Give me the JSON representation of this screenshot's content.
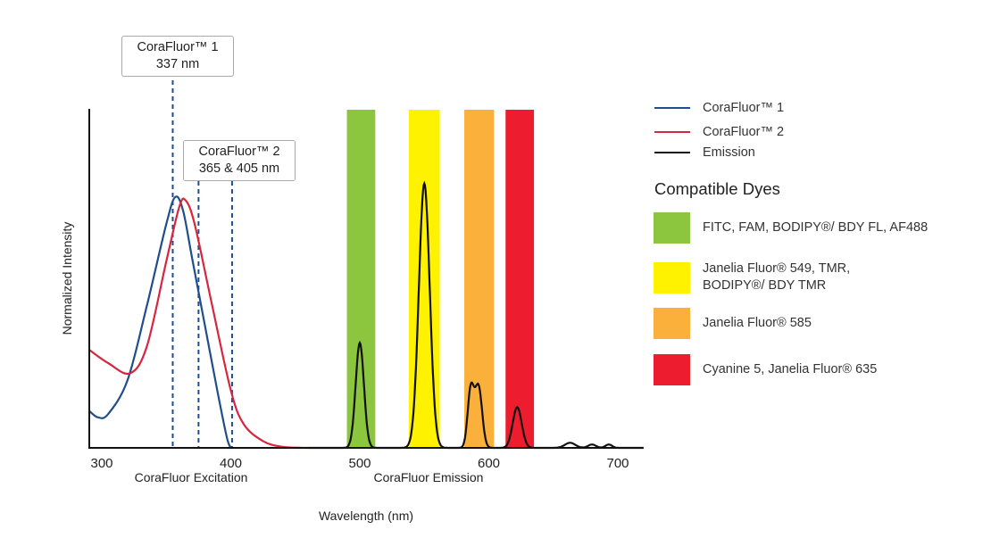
{
  "chart_data": {
    "type": "line",
    "xlabel": "Wavelength (nm)",
    "ylabel": "Normalized Intensity",
    "section_labels": [
      "CoraFluor Excitation",
      "CoraFluor Emission"
    ],
    "xticks": [
      300,
      400,
      500,
      600,
      700
    ],
    "xlim": [
      290,
      720
    ],
    "ylim": [
      0,
      1
    ],
    "callouts": [
      {
        "line1": "CoraFluor™ 1",
        "line2": "337 nm"
      },
      {
        "line1": "CoraFluor™ 2",
        "line2": "365 & 405 nm"
      }
    ],
    "dashed_lines_nm": [
      355,
      375,
      401
    ],
    "series": [
      {
        "name": "CoraFluor™ 1",
        "color": "#1f4e8c",
        "points": [
          [
            290,
            0.11
          ],
          [
            297,
            0.09
          ],
          [
            305,
            0.1
          ],
          [
            320,
            0.2
          ],
          [
            335,
            0.42
          ],
          [
            350,
            0.66
          ],
          [
            357,
            0.74
          ],
          [
            363,
            0.7
          ],
          [
            370,
            0.56
          ],
          [
            380,
            0.36
          ],
          [
            390,
            0.16
          ],
          [
            397,
            0.03
          ],
          [
            400,
            0.0
          ]
        ]
      },
      {
        "name": "CoraFluor™ 2",
        "color": "#d7263d",
        "points": [
          [
            290,
            0.29
          ],
          [
            305,
            0.25
          ],
          [
            322,
            0.22
          ],
          [
            335,
            0.3
          ],
          [
            350,
            0.55
          ],
          [
            360,
            0.71
          ],
          [
            365,
            0.73
          ],
          [
            372,
            0.66
          ],
          [
            385,
            0.43
          ],
          [
            400,
            0.17
          ],
          [
            410,
            0.07
          ],
          [
            425,
            0.02
          ],
          [
            440,
            0.003
          ],
          [
            460,
            0.0
          ]
        ]
      },
      {
        "name": "Emission",
        "color": "#111111",
        "peaks": [
          [
            500,
            0.31,
            3.2
          ],
          [
            550,
            0.78,
            4.2
          ],
          [
            586,
            0.17,
            2.4
          ],
          [
            592,
            0.18,
            2.8
          ],
          [
            622,
            0.12,
            3.5
          ],
          [
            663,
            0.015,
            4
          ],
          [
            680,
            0.01,
            3
          ],
          [
            693,
            0.01,
            2.5
          ]
        ],
        "range": [
          460,
          720
        ]
      }
    ],
    "dye_bands": [
      {
        "from": 490,
        "to": 512,
        "color": "#8cc63f",
        "label": "FITC, FAM, BODIPY®/ BDY FL, AF488"
      },
      {
        "from": 538,
        "to": 562,
        "color": "#fff200",
        "label": "Janelia Fluor® 549, TMR,\nBODIPY®/ BDY TMR"
      },
      {
        "from": 581,
        "to": 604,
        "color": "#fbb03b",
        "label": "Janelia Fluor® 585"
      },
      {
        "from": 613,
        "to": 635,
        "color": "#ed1c2e",
        "label": "Cyanine 5, Janelia Fluor® 635"
      }
    ],
    "legend_title": "Compatible Dyes",
    "legend_placement": "right"
  }
}
